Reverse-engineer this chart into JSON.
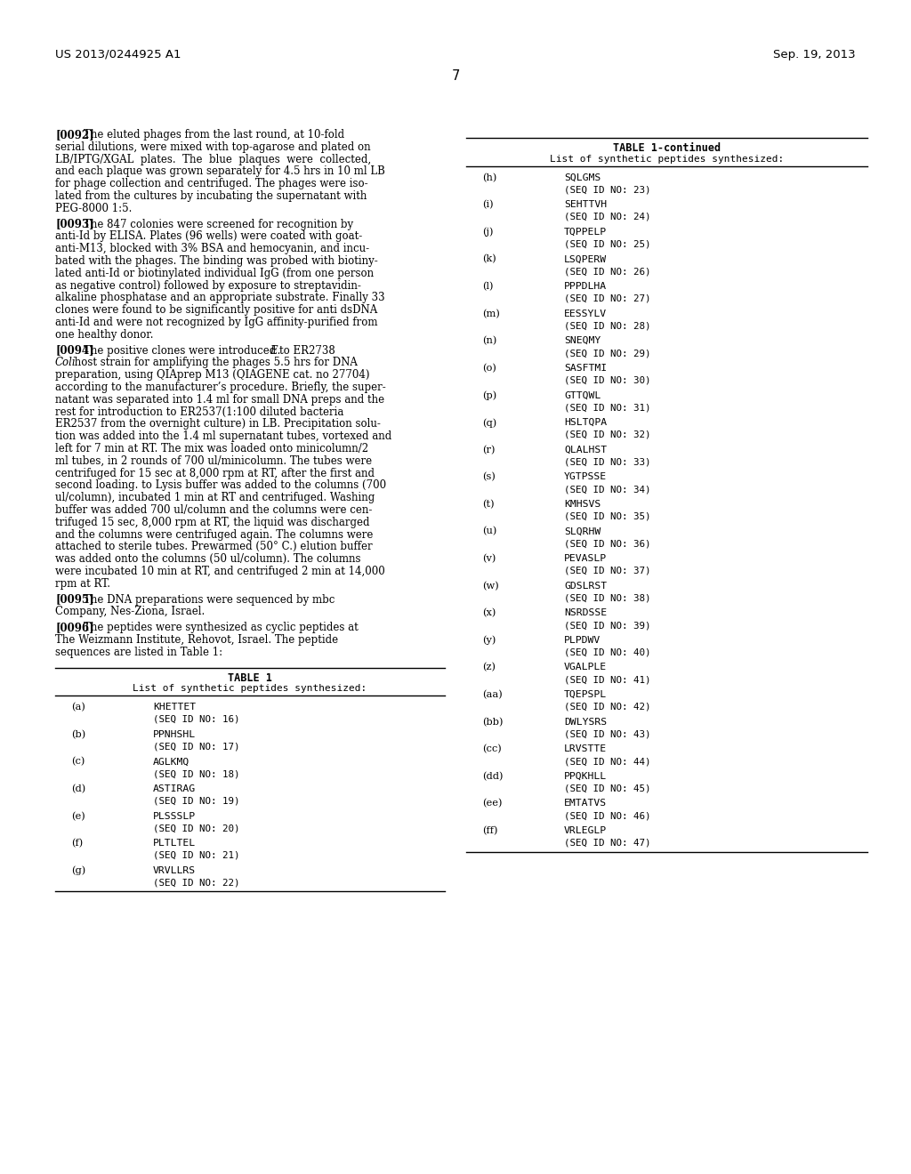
{
  "background_color": "#ffffff",
  "header_left": "US 2013/0244925 A1",
  "header_right": "Sep. 19, 2013",
  "page_number": "7",
  "table1_title": "TABLE 1",
  "table1_subtitle": "List of synthetic peptides synthesized:",
  "table1_entries": [
    {
      "label": "(a)",
      "peptide": "KHETTET",
      "seq": "SEQ ID NO: 16"
    },
    {
      "label": "(b)",
      "peptide": "PPNHSHL",
      "seq": "SEQ ID NO: 17"
    },
    {
      "label": "(c)",
      "peptide": "AGLKMQ",
      "seq": "SEQ ID NO: 18"
    },
    {
      "label": "(d)",
      "peptide": "ASTIRAG",
      "seq": "SEQ ID NO: 19"
    },
    {
      "label": "(e)",
      "peptide": "PLSSSLP",
      "seq": "SEQ ID NO: 20"
    },
    {
      "label": "(f)",
      "peptide": "PLTLTEL",
      "seq": "SEQ ID NO: 21"
    },
    {
      "label": "(g)",
      "peptide": "VRVLLRS",
      "seq": "SEQ ID NO: 22"
    }
  ],
  "table1cont_title": "TABLE 1-continued",
  "table1cont_subtitle": "List of synthetic peptides synthesized:",
  "table1cont_entries": [
    {
      "label": "(h)",
      "peptide": "SQLGMS",
      "seq": "SEQ ID NO: 23"
    },
    {
      "label": "(i)",
      "peptide": "SEHTTVH",
      "seq": "SEQ ID NO: 24"
    },
    {
      "label": "(j)",
      "peptide": "TQPPELP",
      "seq": "SEQ ID NO: 25"
    },
    {
      "label": "(k)",
      "peptide": "LSQPERW",
      "seq": "SEQ ID NO: 26"
    },
    {
      "label": "(l)",
      "peptide": "PPPDLHA",
      "seq": "SEQ ID NO: 27"
    },
    {
      "label": "(m)",
      "peptide": "EESSYLV",
      "seq": "SEQ ID NO: 28"
    },
    {
      "label": "(n)",
      "peptide": "SNEQMY",
      "seq": "SEQ ID NO: 29"
    },
    {
      "label": "(o)",
      "peptide": "SASFTMI",
      "seq": "SEQ ID NO: 30"
    },
    {
      "label": "(p)",
      "peptide": "GTTQWL",
      "seq": "SEQ ID NO: 31"
    },
    {
      "label": "(q)",
      "peptide": "HSLTQPA",
      "seq": "SEQ ID NO: 32"
    },
    {
      "label": "(r)",
      "peptide": "QLALHST",
      "seq": "SEQ ID NO: 33"
    },
    {
      "label": "(s)",
      "peptide": "YGTPSSE",
      "seq": "SEQ ID NO: 34"
    },
    {
      "label": "(t)",
      "peptide": "KMHSVS",
      "seq": "SEQ ID NO: 35"
    },
    {
      "label": "(u)",
      "peptide": "SLQRHW",
      "seq": "SEQ ID NO: 36"
    },
    {
      "label": "(v)",
      "peptide": "PEVASLP",
      "seq": "SEQ ID NO: 37"
    },
    {
      "label": "(w)",
      "peptide": "GDSLRST",
      "seq": "SEQ ID NO: 38"
    },
    {
      "label": "(x)",
      "peptide": "NSRDSSE",
      "seq": "SEQ ID NO: 39"
    },
    {
      "label": "(y)",
      "peptide": "PLPDWV",
      "seq": "SEQ ID NO: 40"
    },
    {
      "label": "(z)",
      "peptide": "VGALPLE",
      "seq": "SEQ ID NO: 41"
    },
    {
      "label": "(aa)",
      "peptide": "TQEPSPL",
      "seq": "SEQ ID NO: 42"
    },
    {
      "label": "(bb)",
      "peptide": "DWLYSRS",
      "seq": "SEQ ID NO: 43"
    },
    {
      "label": "(cc)",
      "peptide": "LRVSTTE",
      "seq": "SEQ ID NO: 44"
    },
    {
      "label": "(dd)",
      "peptide": "PPQKHLL",
      "seq": "SEQ ID NO: 45"
    },
    {
      "label": "(ee)",
      "peptide": "EMTATVS",
      "seq": "SEQ ID NO: 46"
    },
    {
      "label": "(ff)",
      "peptide": "VRLEGLP",
      "seq": "SEQ ID NO: 47"
    }
  ],
  "left_paragraphs": [
    {
      "tag": "[0092]",
      "lines": [
        "The eluted phages from the last round, at 10-fold",
        "serial dilutions, were mixed with top-agarose and plated on",
        "LB/IPTG/XGAL  plates.  The  blue  plaques  were  collected,",
        "and each plaque was grown separately for 4.5 hrs in 10 ml LB",
        "for phage collection and centrifuged. The phages were iso-",
        "lated from the cultures by incubating the supernatant with",
        "PEG-8000 1:5."
      ]
    },
    {
      "tag": "[0093]",
      "lines": [
        "The 847 colonies were screened for recognition by",
        "anti-Id by ELISA. Plates (96 wells) were coated with goat-",
        "anti-M13, blocked with 3% BSA and hemocyanin, and incu-",
        "bated with the phages. The binding was probed with biotiny-",
        "lated anti-Id or biotinylated individual IgG (from one person",
        "as negative control) followed by exposure to streptavidin-",
        "alkaline phosphatase and an appropriate substrate. Finally 33",
        "clones were found to be significantly positive for anti dsDNA",
        "anti-Id and were not recognized by IgG affinity-purified from",
        "one healthy donor."
      ]
    },
    {
      "tag": "[0094]",
      "lines": [
        "The positive clones were introduced to ER2738 E.",
        "Coli host strain for amplifying the phages 5.5 hrs for DNA",
        "preparation, using QIAprep M13 (QIAGENE cat. no 27704)",
        "according to the manufacturer’s procedure. Briefly, the super-",
        "natant was separated into 1.4 ml for small DNA preps and the",
        "rest for introduction to ER2537(1:100 diluted bacteria",
        "ER2537 from the overnight culture) in LB. Precipitation solu-",
        "tion was added into the 1.4 ml supernatant tubes, vortexed and",
        "left for 7 min at RT. The mix was loaded onto minicolumn/2",
        "ml tubes, in 2 rounds of 700 ul/minicolumn. The tubes were",
        "centrifuged for 15 sec at 8,000 rpm at RT, after the first and",
        "second loading. to Lysis buffer was added to the columns (700",
        "ul/column), incubated 1 min at RT and centrifuged. Washing",
        "buffer was added 700 ul/column and the columns were cen-",
        "trifuged 15 sec, 8,000 rpm at RT, the liquid was discharged",
        "and the columns were centrifuged again. The columns were",
        "attached to sterile tubes. Prewarmed (50° C.) elution buffer",
        "was added onto the columns (50 ul/column). The columns",
        "were incubated 10 min at RT, and centrifuged 2 min at 14,000",
        "rpm at RT."
      ],
      "italic_line0_prefix": "The positive clones were introduced to ER2738 ",
      "italic_line0_italic": "E.",
      "italic_line1_italic": "Coli",
      "italic_line1_rest": " host strain for amplifying the phages 5.5 hrs for DNA"
    },
    {
      "tag": "[0095]",
      "lines": [
        "The DNA preparations were sequenced by mbc",
        "Company, Nes-Ziona, Israel."
      ]
    },
    {
      "tag": "[0096]",
      "lines": [
        "The peptides were synthesized as cyclic peptides at",
        "The Weizmann Institute, Rehovot, Israel. The peptide",
        "sequences are listed in Table 1:"
      ]
    }
  ]
}
